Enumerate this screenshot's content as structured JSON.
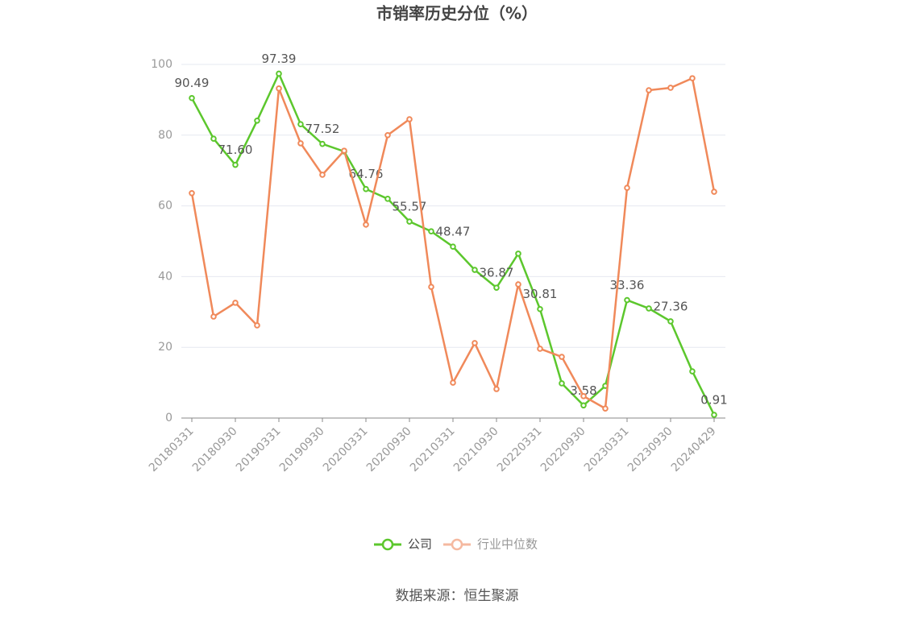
{
  "chart_data": {
    "type": "line",
    "title": "市销率历史分位（%）",
    "categories": [
      "20180331",
      null,
      "20180930",
      null,
      "20190331",
      null,
      "20190930",
      null,
      "20200331",
      null,
      "20200930",
      null,
      "20210331",
      null,
      "20210930",
      null,
      "20220331",
      null,
      "20220930",
      null,
      "20230331",
      null,
      "20230930",
      null,
      "20240429"
    ],
    "series": [
      {
        "name": "公司",
        "color": "#5cc72d",
        "values": [
          90.49,
          79.0,
          71.6,
          84.1,
          97.39,
          83.1,
          77.52,
          75.4,
          64.76,
          62.0,
          55.57,
          52.8,
          48.47,
          41.9,
          36.87,
          46.5,
          30.81,
          9.8,
          3.58,
          9.1,
          33.36,
          31.0,
          27.36,
          13.2,
          0.91
        ],
        "value_labels": [
          "90.49",
          null,
          "71.60",
          null,
          "97.39",
          null,
          "77.52",
          null,
          "64.76",
          null,
          "55.57",
          null,
          "48.47",
          null,
          "36.87",
          null,
          "30.81",
          null,
          "3.58",
          null,
          "33.36",
          null,
          "27.36",
          null,
          "0.91"
        ]
      },
      {
        "name": "行业中位数",
        "color": "#f0895a",
        "values": [
          63.6,
          28.7,
          32.6,
          26.2,
          93.2,
          77.7,
          68.8,
          75.6,
          54.7,
          80.0,
          84.5,
          37.1,
          10.0,
          21.2,
          8.2,
          37.8,
          19.6,
          17.3,
          6.2,
          2.7,
          65.1,
          92.7,
          93.4,
          96.1,
          64.0
        ]
      }
    ],
    "ylim": [
      0,
      100
    ],
    "yticks": [
      0,
      20,
      40,
      60,
      80,
      100
    ],
    "grid": true,
    "legend": "bottom",
    "source": "数据来源：恒生聚源"
  }
}
